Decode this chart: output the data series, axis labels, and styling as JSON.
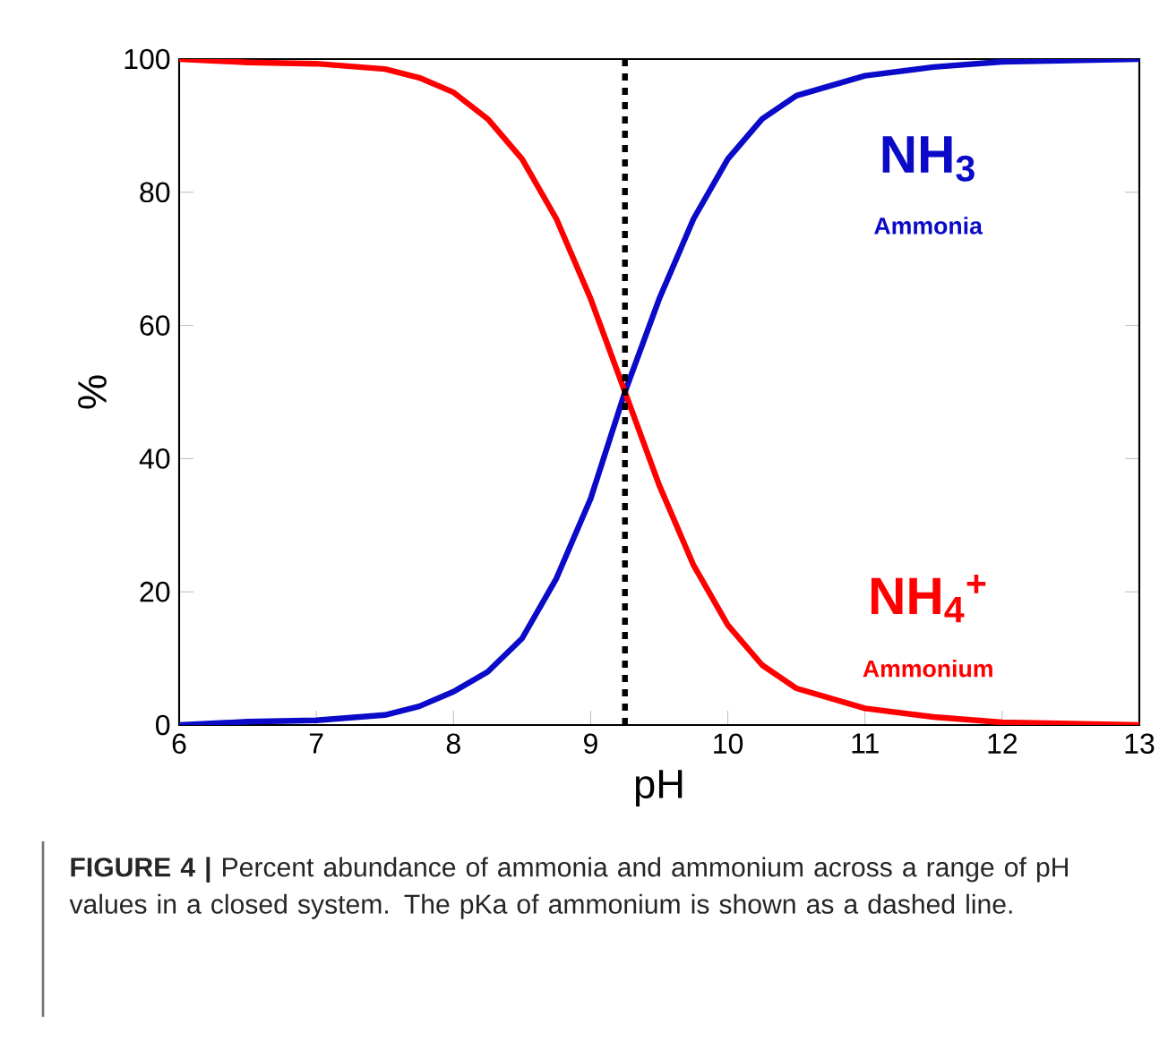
{
  "chart_data": {
    "type": "line",
    "xlabel": "pH",
    "ylabel": "%",
    "xlim": [
      6,
      13
    ],
    "ylim": [
      0,
      100
    ],
    "xticks": [
      6,
      7,
      8,
      9,
      10,
      11,
      12,
      13
    ],
    "yticks": [
      0,
      20,
      40,
      60,
      80,
      100
    ],
    "marker": "none",
    "line_style": "solid",
    "x": [
      6,
      6.5,
      7,
      7.5,
      7.75,
      8,
      8.25,
      8.5,
      8.75,
      9,
      9.25,
      9.5,
      9.75,
      10,
      10.25,
      10.5,
      11,
      11.5,
      12,
      12.5,
      13
    ],
    "series": [
      {
        "name": "NH$_{3}$",
        "color": "#0a0ac8",
        "values": [
          0,
          0.5,
          0.7,
          1.5,
          2.8,
          5,
          8,
          13,
          22,
          34,
          50,
          64,
          76,
          85,
          91,
          94.5,
          97.5,
          98.8,
          99.6,
          99.8,
          100
        ]
      },
      {
        "name": "NH$_{4}$$^{+}$",
        "color": "#ff0000",
        "values": [
          100,
          99.5,
          99.3,
          98.5,
          97.2,
          95,
          91,
          85,
          76,
          64,
          50,
          36,
          24,
          15,
          9,
          5.5,
          2.5,
          1.2,
          0.4,
          0.2,
          0
        ]
      }
    ],
    "ref_lines": [
      {
        "axis": "x",
        "value": 9.25,
        "color": "#000000",
        "line_style": "dashed"
      }
    ],
    "annotations": [
      "Ammonia",
      "Ammonium",
      "**FIGURE 4 |** Percent abundance of ammonia and ammonium across a range of pH values in a closed system. The pKa of ammonium is shown as a dashed line."
    ]
  }
}
